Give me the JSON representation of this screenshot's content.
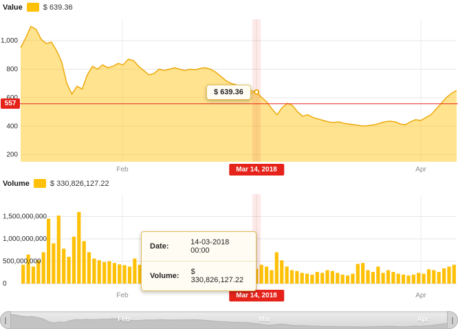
{
  "price_panel": {
    "legend_label": "Value",
    "legend_value": "$ 639.36",
    "tooltip_value": "$ 639.36",
    "current_price_badge": "557",
    "xticks": [
      "Feb",
      "Mar 14, 2018",
      "Apr"
    ]
  },
  "volume_panel": {
    "legend_label": "Volume",
    "legend_value": "$ 330,826,127.22",
    "tooltip": {
      "date_label": "Date:",
      "date_value": "14-03-2018 00:00",
      "volume_label": "Volume:",
      "volume_value": "$ 330,826,127.22"
    },
    "xticks": [
      "Feb",
      "Mar 14, 2018",
      "Apr"
    ]
  },
  "navigator": {
    "labels": [
      "Feb",
      "Mar",
      "Apr"
    ]
  },
  "colors": {
    "series_yellow": "#ffc107",
    "series_line": "#eda90a",
    "area_fill": "rgba(255,193,7,0.45)",
    "highlight_red": "#e5231b",
    "hover_band": "rgba(229,35,27,0.10)",
    "grid": "#e6e6e6"
  },
  "chart_data": {
    "x_dates": [
      "2018-01-27",
      "2018-01-28",
      "2018-01-29",
      "2018-01-30",
      "2018-01-31",
      "2018-02-01",
      "2018-02-02",
      "2018-02-03",
      "2018-02-04",
      "2018-02-05",
      "2018-02-06",
      "2018-02-07",
      "2018-02-08",
      "2018-02-09",
      "2018-02-10",
      "2018-02-11",
      "2018-02-12",
      "2018-02-13",
      "2018-02-14",
      "2018-02-15",
      "2018-02-16",
      "2018-02-17",
      "2018-02-18",
      "2018-02-19",
      "2018-02-20",
      "2018-02-21",
      "2018-02-22",
      "2018-02-23",
      "2018-02-24",
      "2018-02-25",
      "2018-02-26",
      "2018-02-27",
      "2018-02-28",
      "2018-03-01",
      "2018-03-02",
      "2018-03-03",
      "2018-03-04",
      "2018-03-05",
      "2018-03-06",
      "2018-03-07",
      "2018-03-08",
      "2018-03-09",
      "2018-03-10",
      "2018-03-11",
      "2018-03-12",
      "2018-03-13",
      "2018-03-14",
      "2018-03-15",
      "2018-03-16",
      "2018-03-17",
      "2018-03-18",
      "2018-03-19",
      "2018-03-20",
      "2018-03-21",
      "2018-03-22",
      "2018-03-23",
      "2018-03-24",
      "2018-03-25",
      "2018-03-26",
      "2018-03-27",
      "2018-03-28",
      "2018-03-29",
      "2018-03-30",
      "2018-03-31",
      "2018-04-01",
      "2018-04-02",
      "2018-04-03",
      "2018-04-04",
      "2018-04-05",
      "2018-04-06",
      "2018-04-07",
      "2018-04-08",
      "2018-04-09",
      "2018-04-10",
      "2018-04-11",
      "2018-04-12",
      "2018-04-13",
      "2018-04-14",
      "2018-04-15",
      "2018-04-16",
      "2018-04-17",
      "2018-04-18",
      "2018-04-19",
      "2018-04-20",
      "2018-04-21",
      "2018-04-22"
    ],
    "charts": [
      {
        "type": "area",
        "title": "Value",
        "values": [
          950,
          1020,
          1100,
          1080,
          1010,
          980,
          990,
          930,
          850,
          700,
          625,
          680,
          660,
          760,
          820,
          800,
          830,
          810,
          820,
          840,
          830,
          870,
          860,
          820,
          790,
          760,
          770,
          800,
          790,
          800,
          810,
          800,
          790,
          800,
          795,
          805,
          810,
          800,
          780,
          750,
          720,
          700,
          690,
          670,
          660,
          650,
          639.36,
          600,
          570,
          520,
          480,
          530,
          560,
          545,
          500,
          470,
          480,
          460,
          450,
          440,
          430,
          425,
          430,
          420,
          415,
          410,
          405,
          400,
          405,
          410,
          420,
          430,
          435,
          430,
          415,
          410,
          430,
          445,
          440,
          460,
          480,
          520,
          560,
          600,
          630,
          650
        ],
        "ylim": [
          150,
          1150
        ],
        "yticks": [
          200,
          400,
          600,
          800,
          1000
        ],
        "ytick_labels": [
          "200",
          "400",
          "600",
          "800",
          "1,000"
        ],
        "hline": {
          "value": 557,
          "label": "557"
        },
        "highlight": {
          "date": "2018-03-14",
          "value": 639.36,
          "badge": "Mar 14, 2018"
        },
        "grid": true,
        "legend_position": "top-left"
      },
      {
        "type": "bar",
        "title": "Volume",
        "values": [
          420000000,
          650000000,
          380000000,
          520000000,
          700000000,
          1450000000,
          900000000,
          1520000000,
          780000000,
          600000000,
          1050000000,
          1600000000,
          950000000,
          700000000,
          560000000,
          520000000,
          480000000,
          500000000,
          460000000,
          430000000,
          410000000,
          380000000,
          560000000,
          420000000,
          390000000,
          370000000,
          340000000,
          420000000,
          380000000,
          360000000,
          480000000,
          400000000,
          350000000,
          420000000,
          380000000,
          340000000,
          300000000,
          320000000,
          360000000,
          420000000,
          380000000,
          300000000,
          280000000,
          260000000,
          300000000,
          280000000,
          330826127.22,
          420000000,
          380000000,
          300000000,
          700000000,
          520000000,
          380000000,
          300000000,
          280000000,
          240000000,
          220000000,
          200000000,
          260000000,
          240000000,
          300000000,
          280000000,
          240000000,
          200000000,
          180000000,
          220000000,
          440000000,
          460000000,
          300000000,
          260000000,
          380000000,
          240000000,
          300000000,
          260000000,
          220000000,
          200000000,
          180000000,
          200000000,
          240000000,
          220000000,
          320000000,
          300000000,
          260000000,
          340000000,
          380000000,
          420000000
        ],
        "ylim": [
          0,
          2000000000
        ],
        "yticks": [
          1500000000,
          1000000000,
          500000000,
          0
        ],
        "ytick_labels": [
          "1,500,000,000",
          "1,000,000,000",
          "500,000,000",
          "0"
        ],
        "highlight": {
          "date": "2018-03-14",
          "value": 330826127.22,
          "badge": "Mar 14, 2018"
        },
        "grid": true,
        "legend_position": "top-left"
      }
    ]
  }
}
